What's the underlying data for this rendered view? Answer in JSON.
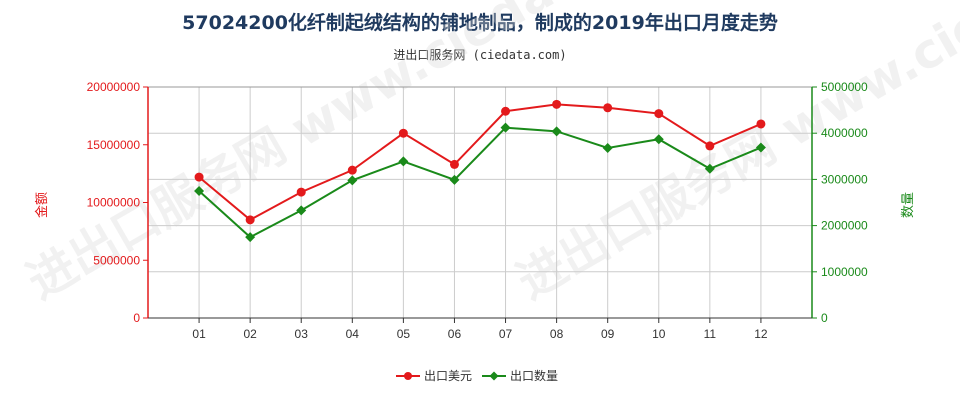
{
  "title": "57024200化纤制起绒结构的铺地制品，制成的2019年出口月度走势",
  "subtitle": "进出口服务网 (ciedata.com)",
  "watermark": "进出口服务网 www.ciedata.com",
  "colors": {
    "left_axis": "#e31a1c",
    "right_axis": "#1a8a1a",
    "series_value": "#e31a1c",
    "series_qty": "#1a8a1a",
    "grid": "#cccccc"
  },
  "chart_data": {
    "type": "line",
    "categories": [
      "01",
      "02",
      "03",
      "04",
      "05",
      "06",
      "07",
      "08",
      "09",
      "10",
      "11",
      "12"
    ],
    "y_left": {
      "label": "金额",
      "ylim": [
        0,
        20000000
      ],
      "ticks": [
        0,
        5000000,
        10000000,
        15000000,
        20000000
      ]
    },
    "y_right": {
      "label": "数量",
      "ylim": [
        0,
        5000000
      ],
      "ticks": [
        0,
        1000000,
        2000000,
        3000000,
        4000000,
        5000000
      ]
    },
    "grid": true,
    "legend": "bottom-center",
    "series": [
      {
        "name": "出口美元",
        "axis": "left",
        "values": [
          12200000,
          8500000,
          10900000,
          12800000,
          16000000,
          13300000,
          17900000,
          18500000,
          18200000,
          17700000,
          14900000,
          16800000
        ]
      },
      {
        "name": "出口数量",
        "axis": "right",
        "values": [
          2750000,
          1750000,
          2330000,
          2980000,
          3390000,
          2990000,
          4120000,
          4040000,
          3680000,
          3870000,
          3230000,
          3690000
        ]
      }
    ]
  }
}
